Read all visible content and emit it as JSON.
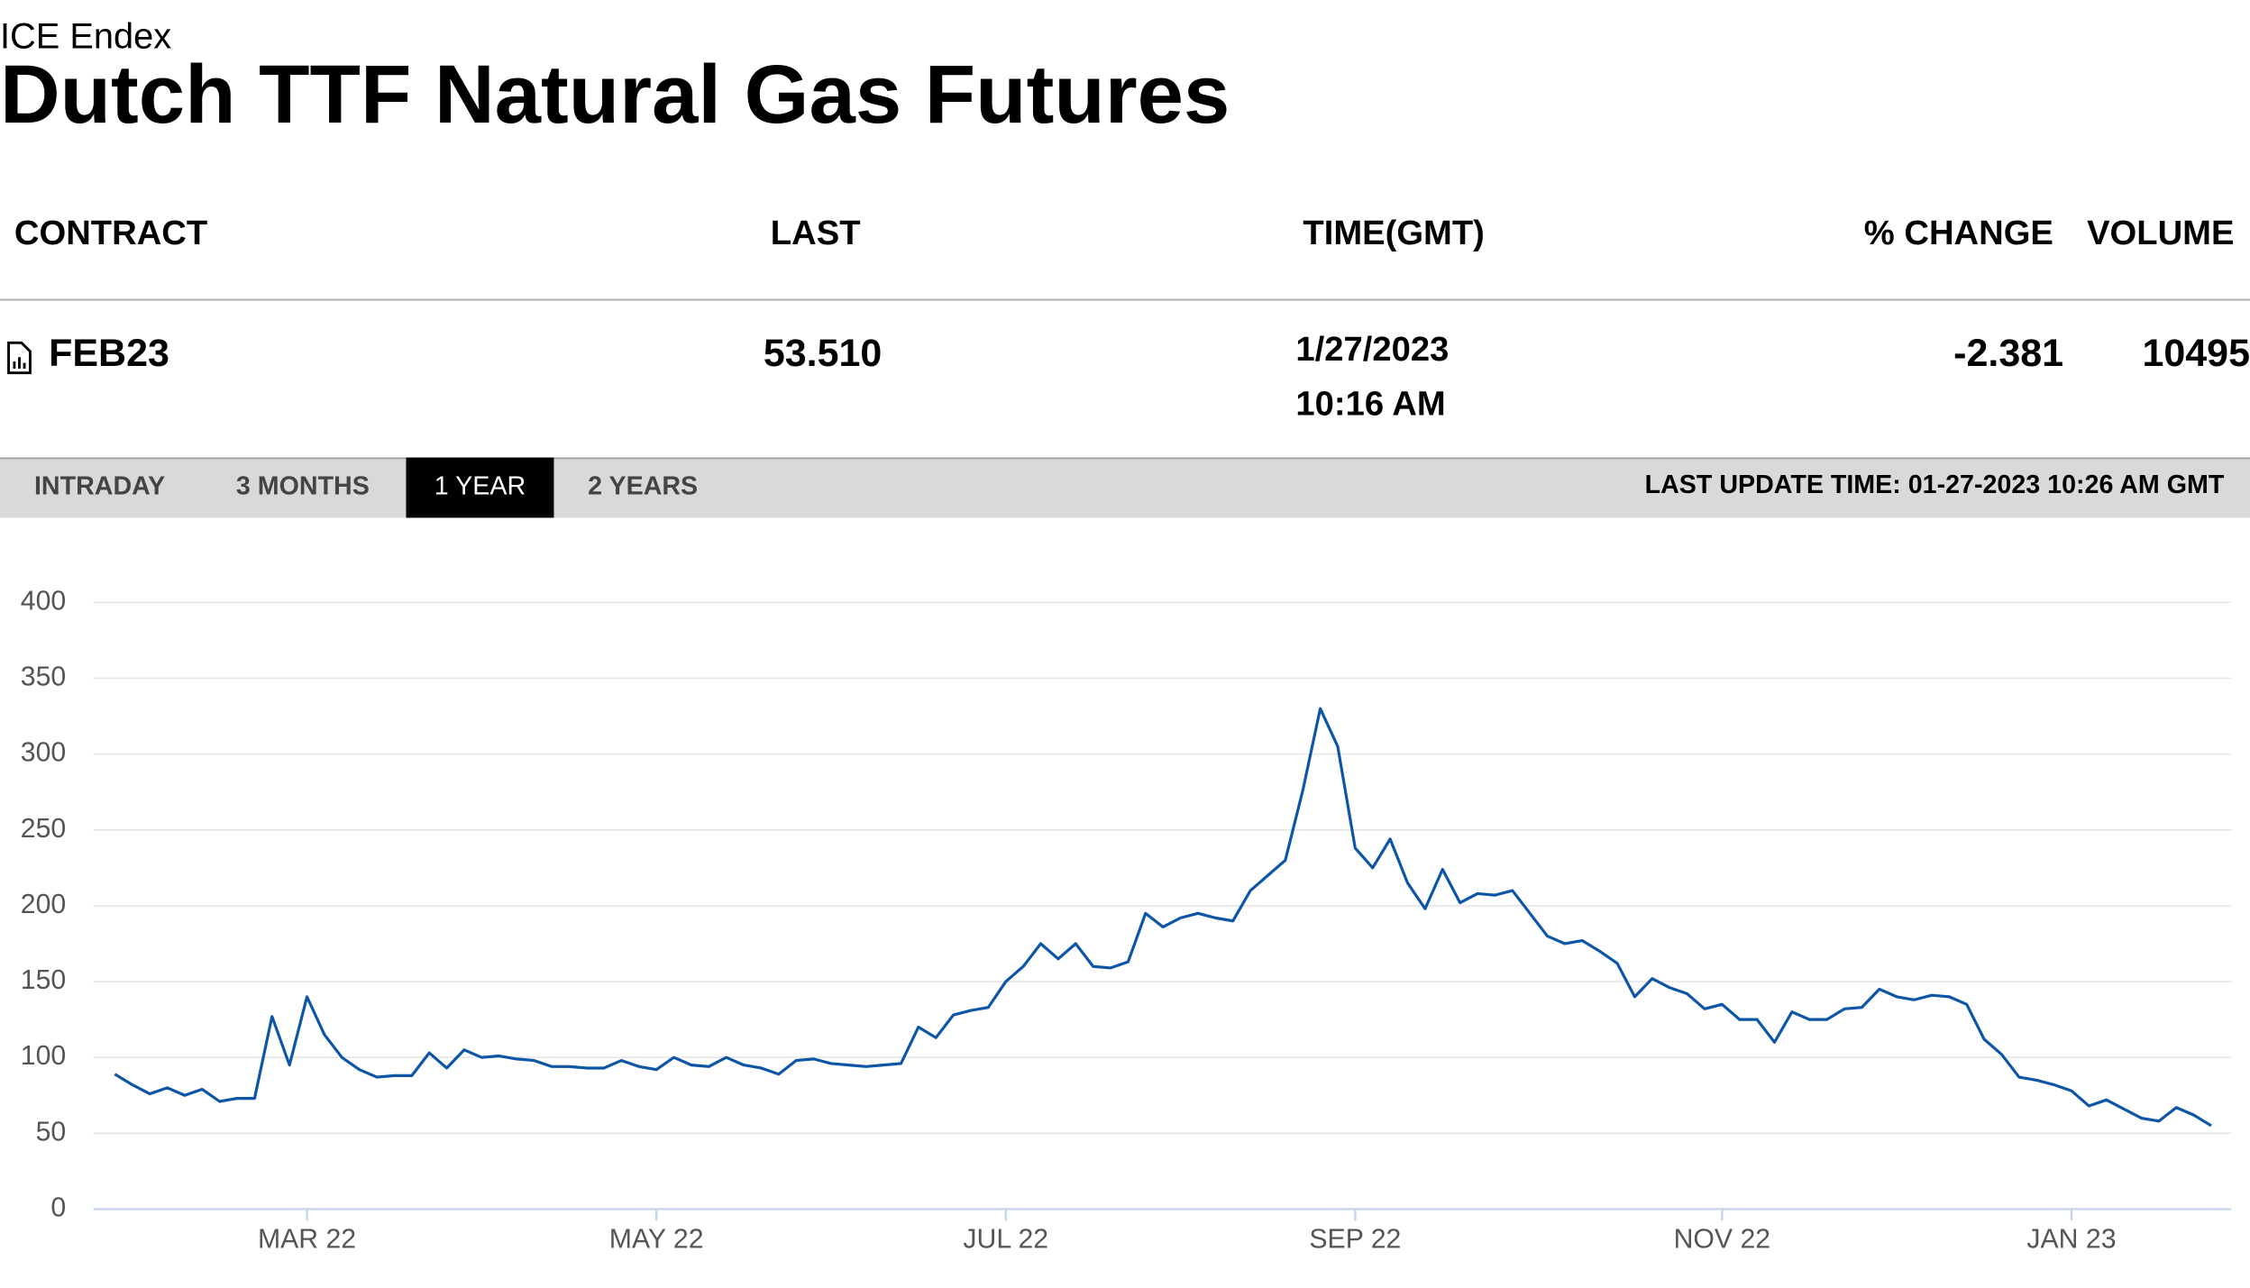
{
  "header": {
    "source": "ICE Endex",
    "title": "Dutch TTF Natural Gas Futures"
  },
  "table": {
    "columns": [
      "CONTRACT",
      "LAST",
      "TIME(GMT)",
      "% CHANGE",
      "VOLUME"
    ],
    "row": {
      "contract": "FEB23",
      "last": "53.510",
      "date": "1/27/2023",
      "time": "10:16 AM",
      "change": "-2.381",
      "volume": "10495"
    }
  },
  "tabs": {
    "items": [
      "INTRADAY",
      "3 MONTHS",
      "1 YEAR",
      "2 YEARS"
    ],
    "active": 2,
    "last_update": "LAST UPDATE TIME: 01-27-2023 10:26 AM GMT"
  },
  "chart_data": {
    "type": "line",
    "categories": [
      null,
      null,
      null,
      null,
      null,
      null,
      null,
      null,
      null,
      null,
      null,
      "MAR 22",
      null,
      null,
      null,
      null,
      null,
      null,
      null,
      null,
      null,
      null,
      null,
      null,
      null,
      null,
      null,
      null,
      null,
      null,
      null,
      "MAY 22",
      null,
      null,
      null,
      null,
      null,
      null,
      null,
      null,
      null,
      null,
      null,
      null,
      null,
      null,
      null,
      null,
      null,
      null,
      null,
      "JUL 22",
      null,
      null,
      null,
      null,
      null,
      null,
      null,
      null,
      null,
      null,
      null,
      null,
      null,
      null,
      null,
      null,
      null,
      null,
      null,
      "SEP 22",
      null,
      null,
      null,
      null,
      null,
      null,
      null,
      null,
      null,
      null,
      null,
      null,
      null,
      null,
      null,
      null,
      null,
      null,
      null,
      null,
      "NOV 22",
      null,
      null,
      null,
      null,
      null,
      null,
      null,
      null,
      null,
      null,
      null,
      null,
      null,
      null,
      null,
      null,
      null,
      null,
      null,
      "JAN 23",
      null,
      null,
      null,
      null,
      null,
      null,
      null,
      null
    ],
    "values": [
      89,
      82,
      76,
      80,
      75,
      79,
      71,
      73,
      73,
      127,
      95,
      140,
      115,
      100,
      92,
      87,
      88,
      88,
      103,
      93,
      105,
      100,
      101,
      99,
      98,
      94,
      94,
      93,
      93,
      98,
      94,
      92,
      100,
      95,
      94,
      100,
      95,
      93,
      89,
      98,
      99,
      96,
      95,
      94,
      95,
      96,
      120,
      113,
      128,
      131,
      133,
      150,
      160,
      175,
      165,
      175,
      160,
      159,
      163,
      195,
      186,
      192,
      195,
      192,
      190,
      210,
      220,
      230,
      276,
      330,
      305,
      238,
      225,
      244,
      215,
      198,
      224,
      202,
      208,
      207,
      210,
      195,
      180,
      175,
      177,
      170,
      162,
      140,
      152,
      146,
      142,
      132,
      135,
      125,
      125,
      110,
      130,
      125,
      125,
      132,
      133,
      145,
      140,
      138,
      141,
      140,
      135,
      112,
      102,
      87,
      85,
      82,
      78,
      68,
      72,
      66,
      60,
      58,
      67,
      62,
      55
    ],
    "color": "#0d56a6",
    "ylim": [
      0,
      400
    ],
    "yticks": [
      0,
      50,
      100,
      150,
      200,
      250,
      300,
      350,
      400
    ],
    "grid": true
  }
}
